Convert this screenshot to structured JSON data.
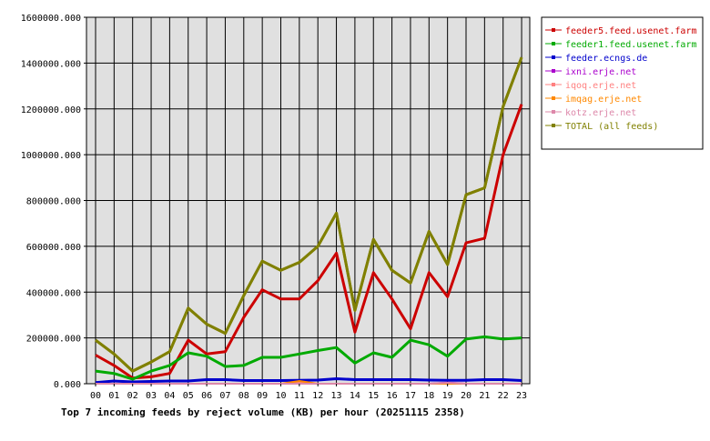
{
  "chart_data": {
    "type": "line",
    "title": "Top 7 incoming feeds by reject volume (KB) per hour (20251115 2358)",
    "x": [
      "00",
      "01",
      "02",
      "03",
      "04",
      "05",
      "06",
      "07",
      "08",
      "09",
      "10",
      "11",
      "12",
      "13",
      "14",
      "15",
      "16",
      "17",
      "18",
      "19",
      "20",
      "21",
      "22",
      "23"
    ],
    "y_ticks": [
      "0.000",
      "200000.000",
      "400000.000",
      "600000.000",
      "800000.000",
      "1000000.000",
      "1200000.000",
      "1400000.000",
      "1600000.000"
    ],
    "ylim": [
      0,
      1600000
    ],
    "grid": true,
    "legend_placement": "right",
    "series": [
      {
        "name": "feeder5.feed.usenet.farm",
        "color": "#cc0000",
        "values": [
          125000,
          80000,
          25000,
          30000,
          45000,
          190000,
          130000,
          140000,
          290000,
          410000,
          370000,
          370000,
          450000,
          570000,
          225000,
          485000,
          370000,
          240000,
          485000,
          380000,
          615000,
          635000,
          1000000,
          1220000
        ]
      },
      {
        "name": "feeder1.feed.usenet.farm",
        "color": "#00aa00",
        "values": [
          55000,
          45000,
          20000,
          55000,
          80000,
          135000,
          120000,
          75000,
          80000,
          115000,
          115000,
          130000,
          145000,
          158000,
          90000,
          135000,
          115000,
          190000,
          170000,
          120000,
          195000,
          205000,
          195000,
          200000
        ]
      },
      {
        "name": "feeder.ecngs.de",
        "color": "#0000cc",
        "values": [
          5000,
          12000,
          8000,
          10000,
          12000,
          12000,
          18000,
          18000,
          14000,
          14000,
          14000,
          15000,
          16000,
          22000,
          18000,
          18000,
          18000,
          18000,
          16000,
          15000,
          15000,
          18000,
          18000,
          14000
        ]
      },
      {
        "name": "ixni.erje.net",
        "color": "#aa00cc",
        "values": [
          0,
          0,
          0,
          0,
          0,
          0,
          0,
          0,
          0,
          0,
          0,
          0,
          0,
          0,
          0,
          0,
          0,
          0,
          0,
          5000,
          0,
          0,
          0,
          0
        ]
      },
      {
        "name": "iqoq.erje.net",
        "color": "#ff8080",
        "values": [
          0,
          0,
          0,
          0,
          0,
          0,
          0,
          0,
          0,
          0,
          0,
          5000,
          0,
          0,
          0,
          0,
          0,
          0,
          0,
          0,
          0,
          0,
          0,
          0
        ]
      },
      {
        "name": "imqag.erje.net",
        "color": "#ff8800",
        "values": [
          0,
          0,
          0,
          0,
          0,
          0,
          0,
          0,
          0,
          0,
          0,
          12000,
          0,
          0,
          0,
          0,
          0,
          0,
          0,
          0,
          0,
          0,
          0,
          0
        ]
      },
      {
        "name": "kotz.erje.net",
        "color": "#dd88aa",
        "values": [
          0,
          0,
          0,
          0,
          0,
          0,
          0,
          0,
          0,
          0,
          0,
          0,
          0,
          0,
          0,
          0,
          0,
          0,
          0,
          4000,
          0,
          0,
          0,
          0
        ]
      },
      {
        "name": "TOTAL (all feeds)",
        "color": "#808000",
        "values": [
          190000,
          130000,
          55000,
          95000,
          140000,
          330000,
          260000,
          220000,
          385000,
          535000,
          495000,
          530000,
          600000,
          745000,
          320000,
          630000,
          495000,
          440000,
          665000,
          520000,
          825000,
          855000,
          1210000,
          1425000
        ]
      }
    ]
  }
}
